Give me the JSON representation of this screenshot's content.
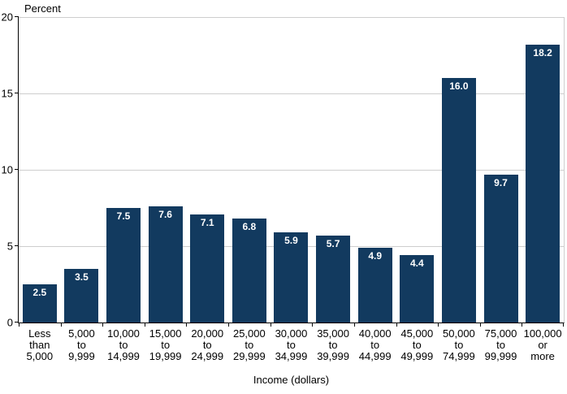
{
  "chart_data": {
    "type": "bar",
    "title": "",
    "ylabel": "Percent",
    "xlabel": "Income (dollars)",
    "ylim": [
      0,
      20
    ],
    "yticks": [
      0,
      5,
      10,
      15,
      20
    ],
    "grid": "horizontal",
    "legend": "none",
    "categories": [
      [
        "Less",
        "than",
        "5,000"
      ],
      [
        "5,000",
        "to",
        "9,999"
      ],
      [
        "10,000",
        "to",
        "14,999"
      ],
      [
        "15,000",
        "to",
        "19,999"
      ],
      [
        "20,000",
        "to",
        "24,999"
      ],
      [
        "25,000",
        "to",
        "29,999"
      ],
      [
        "30,000",
        "to",
        "34,999"
      ],
      [
        "35,000",
        "to",
        "39,999"
      ],
      [
        "40,000",
        "to",
        "44,999"
      ],
      [
        "45,000",
        "to",
        "49,999"
      ],
      [
        "50,000",
        "to",
        "74,999"
      ],
      [
        "75,000",
        "to",
        "99,999"
      ],
      [
        "100,000",
        "or",
        "more"
      ]
    ],
    "values": [
      2.5,
      3.5,
      7.5,
      7.6,
      7.1,
      6.8,
      5.9,
      5.7,
      4.9,
      4.4,
      16.0,
      9.7,
      18.2
    ],
    "value_labels": [
      "2.5",
      "3.5",
      "7.5",
      "7.6",
      "7.1",
      "6.8",
      "5.9",
      "5.7",
      "4.9",
      "4.4",
      "16.0",
      "9.7",
      "18.2"
    ],
    "colors": {
      "bar": "#123a5f",
      "bar_value_text": "#ffffff",
      "gridline": "#cecece",
      "axis": "#000000",
      "background": "#ffffff",
      "text": "#000000"
    }
  }
}
